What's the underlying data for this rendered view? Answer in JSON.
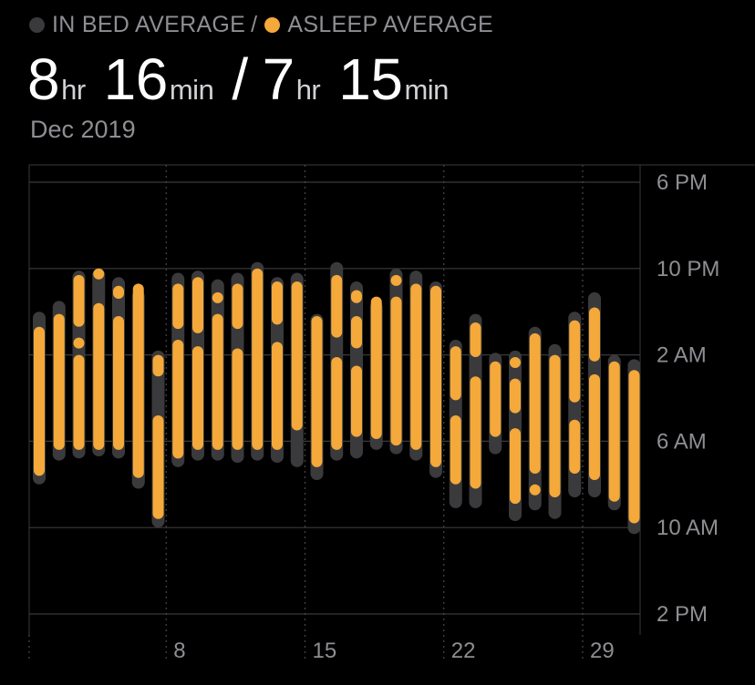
{
  "legend": {
    "in_bed_label": "IN BED AVERAGE",
    "separator": "/",
    "asleep_label": "ASLEEP AVERAGE"
  },
  "headline": {
    "in_bed_hours": "8",
    "hr_unit": "hr",
    "in_bed_minutes": "16",
    "min_unit": "min",
    "slash": "/",
    "asleep_hours": "7",
    "asleep_minutes": "15"
  },
  "period_label": "Dec 2019",
  "colors": {
    "in_bed": "#3a3a3c",
    "asleep": "#f4a93a",
    "background": "#000000",
    "grid": "#3a3a3c",
    "text": "#8e8e93"
  },
  "chart_data": {
    "type": "range_bar",
    "y_axis": {
      "unit": "hours since 6 PM",
      "range": [
        0,
        20
      ],
      "ticks": [
        {
          "value": 0,
          "label": "6 PM"
        },
        {
          "value": 4,
          "label": "10 PM"
        },
        {
          "value": 8,
          "label": "2 AM"
        },
        {
          "value": 12,
          "label": "6 AM"
        },
        {
          "value": 16,
          "label": "10 AM"
        },
        {
          "value": 20,
          "label": "2 PM"
        }
      ],
      "position": "right"
    },
    "x_axis": {
      "days": [
        1,
        31
      ],
      "ticks": [
        {
          "day": 8,
          "label": "8"
        },
        {
          "day": 15,
          "label": "15"
        },
        {
          "day": 22,
          "label": "22"
        },
        {
          "day": 29,
          "label": "29"
        }
      ]
    },
    "grid": true,
    "series": [
      {
        "name": "IN BED AVERAGE",
        "values": [
          {
            "day": 1,
            "start": 6.0,
            "end": 14.0
          },
          {
            "day": 2,
            "start": 5.5,
            "end": 12.9
          },
          {
            "day": 3,
            "start": 4.1,
            "end": 12.8
          },
          {
            "day": 4,
            "start": 4.0,
            "end": 12.7
          },
          {
            "day": 5,
            "start": 4.4,
            "end": 12.8
          },
          {
            "day": 6,
            "start": 5.0,
            "end": 14.2
          },
          {
            "day": 7,
            "start": 7.8,
            "end": 16.0
          },
          {
            "day": 8,
            "start": 4.2,
            "end": 13.2
          },
          {
            "day": 9,
            "start": 4.1,
            "end": 12.9
          },
          {
            "day": 10,
            "start": 4.5,
            "end": 12.9
          },
          {
            "day": 11,
            "start": 4.2,
            "end": 13.0
          },
          {
            "day": 12,
            "start": 3.7,
            "end": 12.9
          },
          {
            "day": 13,
            "start": 4.4,
            "end": 13.0
          },
          {
            "day": 14,
            "start": 4.2,
            "end": 13.2
          },
          {
            "day": 15,
            "start": 6.1,
            "end": 13.8
          },
          {
            "day": 16,
            "start": 3.7,
            "end": 12.9
          },
          {
            "day": 17,
            "start": 4.6,
            "end": 12.8
          },
          {
            "day": 18,
            "start": 5.5,
            "end": 12.4
          },
          {
            "day": 19,
            "start": 4.0,
            "end": 12.6
          },
          {
            "day": 20,
            "start": 4.1,
            "end": 12.9
          },
          {
            "day": 21,
            "start": 4.6,
            "end": 13.7
          },
          {
            "day": 22,
            "start": 7.3,
            "end": 15.1
          },
          {
            "day": 23,
            "start": 6.1,
            "end": 15.1
          },
          {
            "day": 24,
            "start": 7.9,
            "end": 12.6
          },
          {
            "day": 25,
            "start": 7.8,
            "end": 15.7
          },
          {
            "day": 26,
            "start": 6.7,
            "end": 15.2
          },
          {
            "day": 27,
            "start": 7.5,
            "end": 15.6
          },
          {
            "day": 28,
            "start": 6.0,
            "end": 14.6
          },
          {
            "day": 29,
            "start": 5.1,
            "end": 14.6
          },
          {
            "day": 30,
            "start": 8.0,
            "end": 15.2
          },
          {
            "day": 31,
            "start": 8.2,
            "end": 16.3
          }
        ]
      },
      {
        "name": "ASLEEP AVERAGE",
        "values": [
          {
            "day": 1,
            "segments": [
              [
                6.7,
                13.6
              ]
            ]
          },
          {
            "day": 2,
            "segments": [
              [
                6.1,
                12.4
              ]
            ]
          },
          {
            "day": 3,
            "segments": [
              [
                4.3,
                6.7
              ],
              [
                7.2,
                7.4
              ],
              [
                8.0,
                12.4
              ]
            ]
          },
          {
            "day": 4,
            "segments": [
              [
                4.0,
                4.2
              ],
              [
                5.6,
                12.4
              ]
            ]
          },
          {
            "day": 5,
            "segments": [
              [
                4.8,
                5.4
              ],
              [
                6.2,
                12.4
              ]
            ]
          },
          {
            "day": 6,
            "segments": [
              [
                4.7,
                13.7
              ]
            ]
          },
          {
            "day": 7,
            "segments": [
              [
                8.0,
                9.0
              ],
              [
                10.8,
                15.6
              ]
            ]
          },
          {
            "day": 8,
            "segments": [
              [
                4.7,
                6.8
              ],
              [
                7.3,
                12.8
              ]
            ]
          },
          {
            "day": 9,
            "segments": [
              [
                4.4,
                7.0
              ],
              [
                7.6,
                12.4
              ]
            ]
          },
          {
            "day": 10,
            "segments": [
              [
                5.1,
                5.4
              ],
              [
                6.1,
                12.4
              ]
            ]
          },
          {
            "day": 11,
            "segments": [
              [
                4.7,
                6.8
              ],
              [
                7.7,
                12.4
              ]
            ]
          },
          {
            "day": 12,
            "segments": [
              [
                4.0,
                12.4
              ]
            ]
          },
          {
            "day": 13,
            "segments": [
              [
                4.6,
                6.6
              ],
              [
                7.4,
                12.4
              ]
            ]
          },
          {
            "day": 14,
            "segments": [
              [
                4.6,
                11.5
              ]
            ]
          },
          {
            "day": 15,
            "segments": [
              [
                6.2,
                13.2
              ]
            ]
          },
          {
            "day": 16,
            "segments": [
              [
                4.3,
                7.2
              ],
              [
                8.1,
                12.4
              ]
            ]
          },
          {
            "day": 17,
            "segments": [
              [
                5.0,
                5.6
              ],
              [
                6.2,
                7.7
              ],
              [
                8.5,
                11.8
              ]
            ]
          },
          {
            "day": 18,
            "segments": [
              [
                5.3,
                11.9
              ]
            ]
          },
          {
            "day": 19,
            "segments": [
              [
                4.3,
                4.6
              ],
              [
                5.3,
                12.2
              ]
            ]
          },
          {
            "day": 20,
            "segments": [
              [
                4.7,
                12.4
              ]
            ]
          },
          {
            "day": 21,
            "segments": [
              [
                4.8,
                13.2
              ]
            ]
          },
          {
            "day": 22,
            "segments": [
              [
                7.6,
                10.1
              ],
              [
                10.8,
                14.0
              ]
            ]
          },
          {
            "day": 23,
            "segments": [
              [
                6.5,
                8.1
              ],
              [
                9.0,
                14.2
              ]
            ]
          },
          {
            "day": 24,
            "segments": [
              [
                8.3,
                11.8
              ]
            ]
          },
          {
            "day": 25,
            "segments": [
              [
                8.1,
                8.4
              ],
              [
                9.1,
                10.7
              ],
              [
                11.4,
                14.9
              ]
            ]
          },
          {
            "day": 26,
            "segments": [
              [
                7.0,
                13.5
              ],
              [
                14.0,
                14.3
              ]
            ]
          },
          {
            "day": 27,
            "segments": [
              [
                8.0,
                14.6
              ]
            ]
          },
          {
            "day": 28,
            "segments": [
              [
                6.4,
                10.2
              ],
              [
                11.0,
                13.5
              ]
            ]
          },
          {
            "day": 29,
            "segments": [
              [
                5.8,
                8.3
              ],
              [
                8.9,
                13.8
              ]
            ]
          },
          {
            "day": 30,
            "segments": [
              [
                8.3,
                14.8
              ]
            ]
          },
          {
            "day": 31,
            "segments": [
              [
                8.7,
                15.8
              ]
            ]
          }
        ]
      }
    ]
  }
}
